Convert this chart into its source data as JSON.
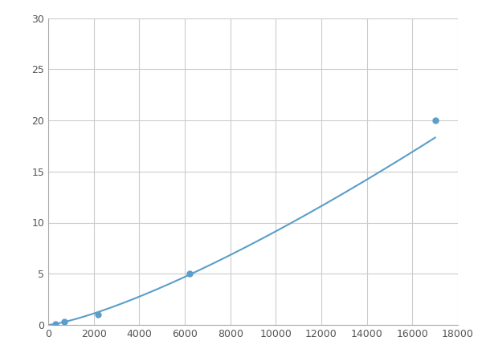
{
  "x": [
    300,
    700,
    2200,
    6200,
    17000
  ],
  "y": [
    0.1,
    0.3,
    1.0,
    5.0,
    20.0
  ],
  "line_color": "#5b9ec9",
  "marker_color": "#5b9ec9",
  "marker_size": 5,
  "line_width": 1.5,
  "xlim": [
    0,
    18000
  ],
  "ylim": [
    0,
    30
  ],
  "xticks": [
    0,
    2000,
    4000,
    6000,
    8000,
    10000,
    12000,
    14000,
    16000,
    18000
  ],
  "yticks": [
    0,
    5,
    10,
    15,
    20,
    25,
    30
  ],
  "grid_color": "#cccccc",
  "background_color": "#ffffff",
  "figsize": [
    6.0,
    4.5
  ],
  "dpi": 100
}
